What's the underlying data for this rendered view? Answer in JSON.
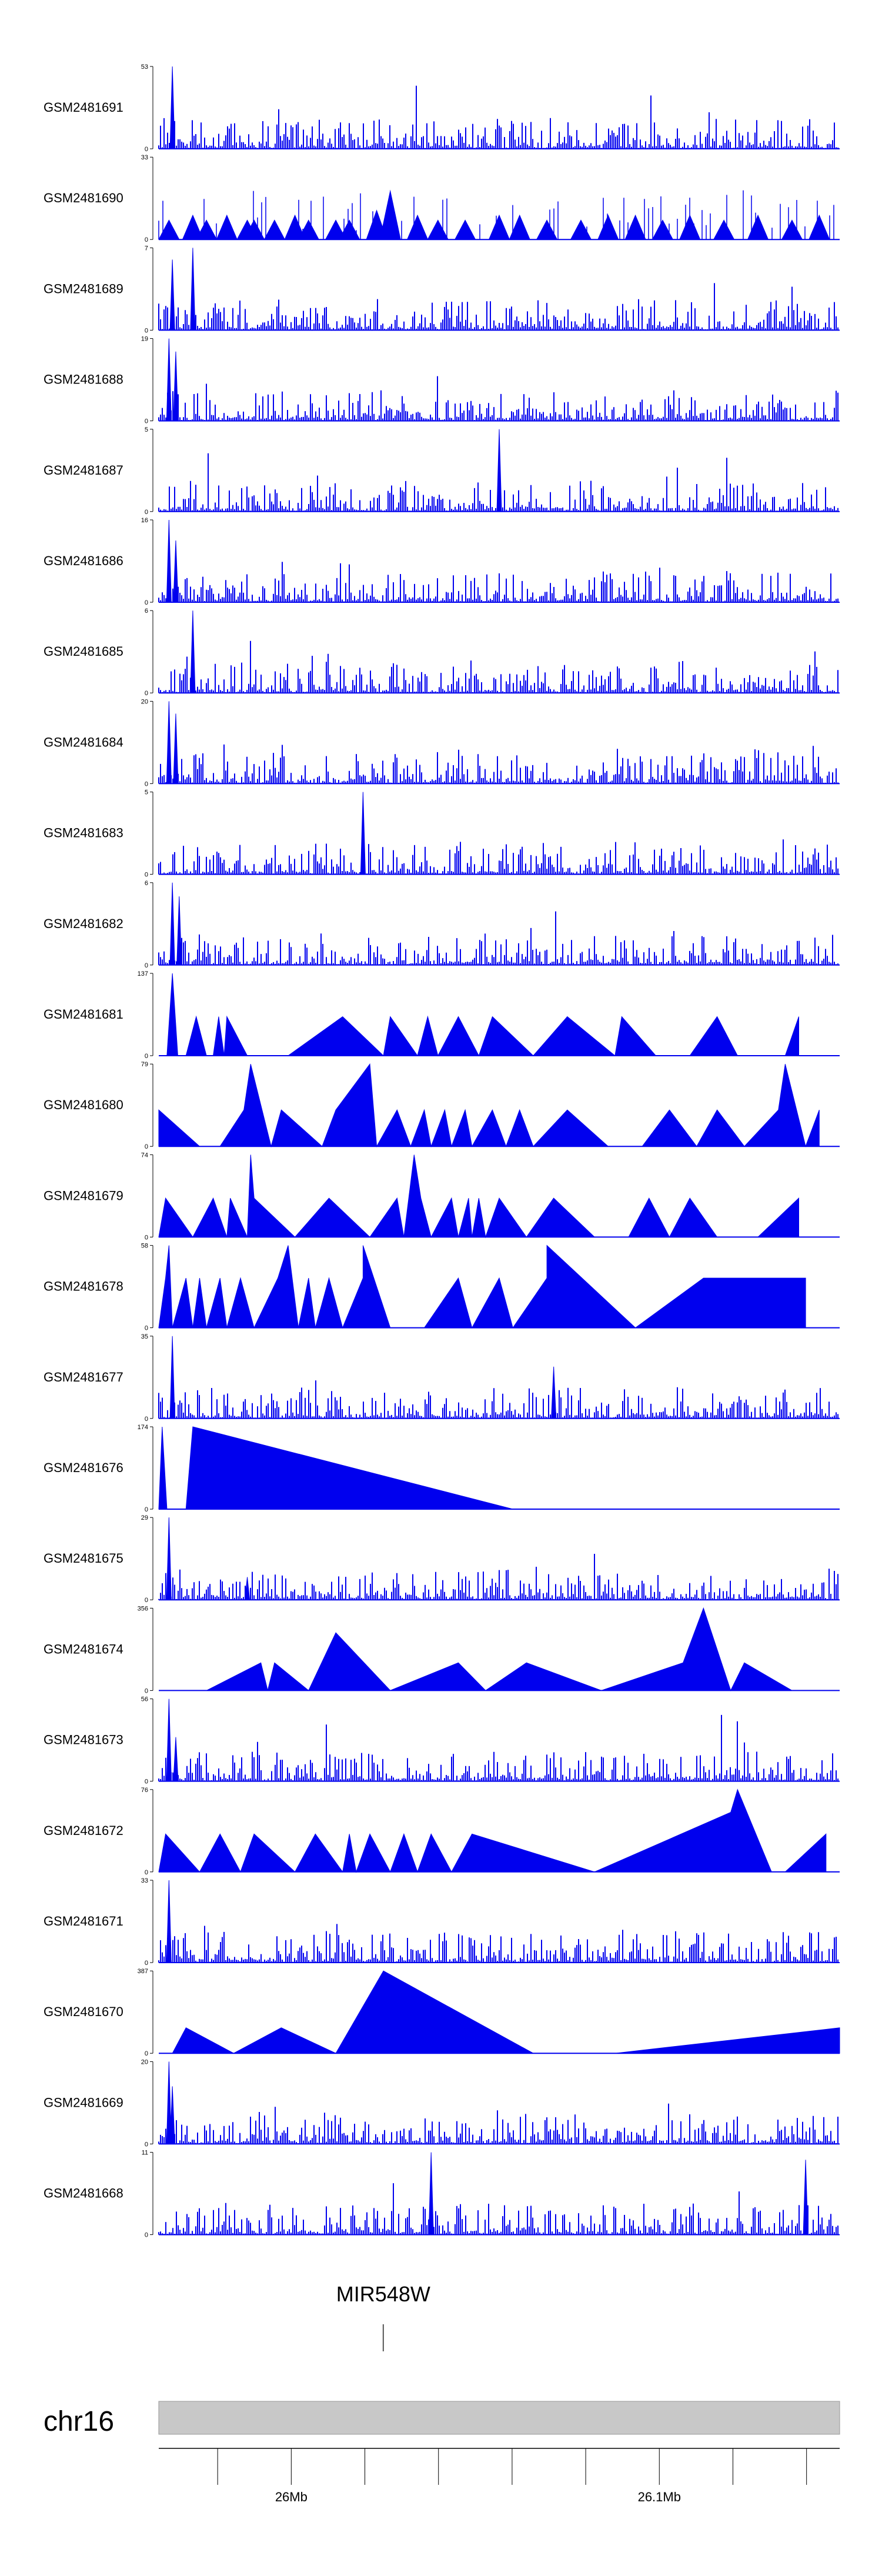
{
  "chart_data": {
    "type": "area",
    "title": "",
    "series_color": "#0000ee",
    "tracks": [
      {
        "name": "GSM2481691",
        "ymax": 53,
        "ymin": 0,
        "style": "dense",
        "spikes": [
          [
            0.02,
            53
          ]
        ]
      },
      {
        "name": "GSM2481690",
        "ymax": 33,
        "ymin": 0,
        "style": "sparse-peaks",
        "peaks": [
          [
            0.015,
            8
          ],
          [
            0.05,
            10
          ],
          [
            0.07,
            8
          ],
          [
            0.1,
            10
          ],
          [
            0.13,
            8
          ],
          [
            0.14,
            8
          ],
          [
            0.17,
            8
          ],
          [
            0.2,
            10
          ],
          [
            0.22,
            8
          ],
          [
            0.26,
            8
          ],
          [
            0.28,
            8
          ],
          [
            0.32,
            12
          ],
          [
            0.34,
            20
          ],
          [
            0.38,
            10
          ],
          [
            0.41,
            8
          ],
          [
            0.45,
            8
          ],
          [
            0.5,
            10
          ],
          [
            0.53,
            10
          ],
          [
            0.57,
            8
          ],
          [
            0.62,
            8
          ],
          [
            0.66,
            10
          ],
          [
            0.7,
            10
          ],
          [
            0.74,
            8
          ],
          [
            0.78,
            10
          ],
          [
            0.83,
            8
          ],
          [
            0.88,
            10
          ],
          [
            0.93,
            8
          ],
          [
            0.97,
            10
          ]
        ]
      },
      {
        "name": "GSM2481689",
        "ymax": 7,
        "ymin": 0,
        "style": "dense",
        "spikes": [
          [
            0.05,
            7
          ],
          [
            0.02,
            6
          ]
        ]
      },
      {
        "name": "GSM2481688",
        "ymax": 19,
        "ymin": 0,
        "style": "dense",
        "spikes": [
          [
            0.015,
            19
          ],
          [
            0.025,
            16
          ]
        ]
      },
      {
        "name": "GSM2481687",
        "ymax": 5,
        "ymin": 0,
        "style": "dense",
        "spikes": [
          [
            0.5,
            5
          ]
        ]
      },
      {
        "name": "GSM2481686",
        "ymax": 16,
        "ymin": 0,
        "style": "dense",
        "spikes": [
          [
            0.015,
            16
          ],
          [
            0.025,
            12
          ]
        ]
      },
      {
        "name": "GSM2481685",
        "ymax": 6,
        "ymin": 0,
        "style": "dense",
        "spikes": [
          [
            0.05,
            6
          ]
        ]
      },
      {
        "name": "GSM2481684",
        "ymax": 20,
        "ymin": 0,
        "style": "dense",
        "spikes": [
          [
            0.015,
            20
          ],
          [
            0.025,
            17
          ]
        ]
      },
      {
        "name": "GSM2481683",
        "ymax": 5,
        "ymin": 0,
        "style": "dense",
        "spikes": [
          [
            0.3,
            5
          ]
        ]
      },
      {
        "name": "GSM2481682",
        "ymax": 6,
        "ymin": 0,
        "style": "dense",
        "spikes": [
          [
            0.02,
            6
          ],
          [
            0.03,
            5
          ]
        ]
      },
      {
        "name": "GSM2481681",
        "ymax": 137,
        "ymin": 0,
        "style": "peaks",
        "peaks": [
          [
            0.0,
            0
          ],
          [
            0.012,
            0
          ],
          [
            0.02,
            137
          ],
          [
            0.028,
            0
          ],
          [
            0.04,
            0
          ],
          [
            0.055,
            65
          ],
          [
            0.07,
            0
          ],
          [
            0.08,
            0
          ],
          [
            0.088,
            65
          ],
          [
            0.096,
            0
          ],
          [
            0.1,
            65
          ],
          [
            0.13,
            0
          ],
          [
            0.19,
            0
          ],
          [
            0.27,
            65
          ],
          [
            0.33,
            0
          ],
          [
            0.34,
            65
          ],
          [
            0.38,
            0
          ],
          [
            0.395,
            65
          ],
          [
            0.41,
            0
          ],
          [
            0.44,
            65
          ],
          [
            0.47,
            0
          ],
          [
            0.49,
            65
          ],
          [
            0.55,
            0
          ],
          [
            0.6,
            65
          ],
          [
            0.67,
            0
          ],
          [
            0.68,
            65
          ],
          [
            0.73,
            0
          ],
          [
            0.78,
            0
          ],
          [
            0.82,
            65
          ],
          [
            0.85,
            0
          ],
          [
            0.92,
            0
          ],
          [
            0.94,
            65
          ]
        ]
      },
      {
        "name": "GSM2481680",
        "ymax": 79,
        "ymin": 0,
        "style": "peaks",
        "peaks": [
          [
            0.0,
            0
          ],
          [
            0.0,
            35
          ],
          [
            0.06,
            0
          ],
          [
            0.09,
            0
          ],
          [
            0.125,
            35
          ],
          [
            0.135,
            79
          ],
          [
            0.165,
            0
          ],
          [
            0.18,
            35
          ],
          [
            0.24,
            0
          ],
          [
            0.26,
            35
          ],
          [
            0.31,
            79
          ],
          [
            0.32,
            0
          ],
          [
            0.35,
            35
          ],
          [
            0.37,
            0
          ],
          [
            0.39,
            35
          ],
          [
            0.4,
            0
          ],
          [
            0.42,
            35
          ],
          [
            0.43,
            0
          ],
          [
            0.45,
            35
          ],
          [
            0.46,
            0
          ],
          [
            0.49,
            35
          ],
          [
            0.51,
            0
          ],
          [
            0.53,
            35
          ],
          [
            0.55,
            0
          ],
          [
            0.6,
            35
          ],
          [
            0.66,
            0
          ],
          [
            0.71,
            0
          ],
          [
            0.75,
            35
          ],
          [
            0.79,
            0
          ],
          [
            0.82,
            35
          ],
          [
            0.86,
            0
          ],
          [
            0.91,
            35
          ],
          [
            0.92,
            79
          ],
          [
            0.95,
            0
          ],
          [
            0.97,
            35
          ]
        ]
      },
      {
        "name": "GSM2481679",
        "ymax": 74,
        "ymin": 0,
        "style": "peaks",
        "peaks": [
          [
            0.0,
            0
          ],
          [
            0.01,
            35
          ],
          [
            0.05,
            0
          ],
          [
            0.08,
            35
          ],
          [
            0.1,
            0
          ],
          [
            0.105,
            35
          ],
          [
            0.13,
            0
          ],
          [
            0.135,
            74
          ],
          [
            0.14,
            35
          ],
          [
            0.2,
            0
          ],
          [
            0.25,
            35
          ],
          [
            0.31,
            0
          ],
          [
            0.35,
            35
          ],
          [
            0.36,
            0
          ],
          [
            0.375,
            74
          ],
          [
            0.385,
            35
          ],
          [
            0.4,
            0
          ],
          [
            0.43,
            35
          ],
          [
            0.44,
            0
          ],
          [
            0.455,
            35
          ],
          [
            0.46,
            0
          ],
          [
            0.47,
            35
          ],
          [
            0.48,
            0
          ],
          [
            0.5,
            35
          ],
          [
            0.54,
            0
          ],
          [
            0.58,
            35
          ],
          [
            0.64,
            0
          ],
          [
            0.69,
            0
          ],
          [
            0.72,
            35
          ],
          [
            0.75,
            0
          ],
          [
            0.78,
            35
          ],
          [
            0.82,
            0
          ],
          [
            0.88,
            0
          ],
          [
            0.94,
            35
          ]
        ]
      },
      {
        "name": "GSM2481678",
        "ymax": 58,
        "ymin": 0,
        "style": "peaks",
        "peaks": [
          [
            0.0,
            0
          ],
          [
            0.01,
            35
          ],
          [
            0.015,
            58
          ],
          [
            0.02,
            0
          ],
          [
            0.04,
            35
          ],
          [
            0.05,
            0
          ],
          [
            0.06,
            35
          ],
          [
            0.07,
            0
          ],
          [
            0.09,
            35
          ],
          [
            0.1,
            0
          ],
          [
            0.12,
            35
          ],
          [
            0.14,
            0
          ],
          [
            0.175,
            35
          ],
          [
            0.19,
            58
          ],
          [
            0.205,
            0
          ],
          [
            0.22,
            35
          ],
          [
            0.23,
            0
          ],
          [
            0.25,
            35
          ],
          [
            0.27,
            0
          ],
          [
            0.3,
            35
          ],
          [
            0.3,
            58
          ],
          [
            0.34,
            0
          ],
          [
            0.39,
            0
          ],
          [
            0.44,
            35
          ],
          [
            0.46,
            0
          ],
          [
            0.5,
            35
          ],
          [
            0.52,
            0
          ],
          [
            0.57,
            35
          ],
          [
            0.57,
            58
          ],
          [
            0.7,
            0
          ],
          [
            0.8,
            35
          ],
          [
            0.95,
            35
          ]
        ]
      },
      {
        "name": "GSM2481677",
        "ymax": 35,
        "ymin": 0,
        "style": "dense",
        "spikes": [
          [
            0.02,
            35
          ],
          [
            0.58,
            22
          ]
        ]
      },
      {
        "name": "GSM2481676",
        "ymax": 174,
        "ymin": 0,
        "style": "peaks",
        "peaks": [
          [
            0.0,
            0
          ],
          [
            0.005,
            174
          ],
          [
            0.012,
            0
          ],
          [
            0.04,
            0
          ],
          [
            0.05,
            174
          ],
          [
            0.52,
            0
          ]
        ]
      },
      {
        "name": "GSM2481675",
        "ymax": 29,
        "ymin": 0,
        "style": "dense",
        "spikes": [
          [
            0.015,
            29
          ],
          [
            0.13,
            8
          ]
        ]
      },
      {
        "name": "GSM2481674",
        "ymax": 356,
        "ymin": 0,
        "style": "peaks",
        "peaks": [
          [
            0.07,
            0
          ],
          [
            0.15,
            120
          ],
          [
            0.16,
            0
          ],
          [
            0.17,
            120
          ],
          [
            0.22,
            0
          ],
          [
            0.26,
            250
          ],
          [
            0.34,
            0
          ],
          [
            0.44,
            120
          ],
          [
            0.48,
            0
          ],
          [
            0.54,
            120
          ],
          [
            0.65,
            0
          ],
          [
            0.77,
            120
          ],
          [
            0.8,
            356
          ],
          [
            0.84,
            0
          ],
          [
            0.86,
            120
          ],
          [
            0.93,
            0
          ]
        ]
      },
      {
        "name": "GSM2481673",
        "ymax": 56,
        "ymin": 0,
        "style": "dense",
        "spikes": [
          [
            0.015,
            56
          ],
          [
            0.025,
            30
          ]
        ]
      },
      {
        "name": "GSM2481672",
        "ymax": 76,
        "ymin": 0,
        "style": "peaks",
        "peaks": [
          [
            0.0,
            0
          ],
          [
            0.01,
            35
          ],
          [
            0.06,
            0
          ],
          [
            0.09,
            35
          ],
          [
            0.12,
            0
          ],
          [
            0.14,
            35
          ],
          [
            0.2,
            0
          ],
          [
            0.23,
            35
          ],
          [
            0.27,
            0
          ],
          [
            0.28,
            35
          ],
          [
            0.29,
            0
          ],
          [
            0.31,
            35
          ],
          [
            0.34,
            0
          ],
          [
            0.36,
            35
          ],
          [
            0.38,
            0
          ],
          [
            0.4,
            35
          ],
          [
            0.43,
            0
          ],
          [
            0.46,
            35
          ],
          [
            0.64,
            0
          ],
          [
            0.84,
            55
          ],
          [
            0.85,
            76
          ],
          [
            0.9,
            0
          ],
          [
            0.92,
            0
          ],
          [
            0.98,
            35
          ]
        ]
      },
      {
        "name": "GSM2481671",
        "ymax": 33,
        "ymin": 0,
        "style": "dense",
        "spikes": [
          [
            0.015,
            33
          ]
        ]
      },
      {
        "name": "GSM2481670",
        "ymax": 387,
        "ymin": 0,
        "style": "peaks",
        "peaks": [
          [
            0.02,
            0
          ],
          [
            0.04,
            120
          ],
          [
            0.11,
            0
          ],
          [
            0.18,
            120
          ],
          [
            0.26,
            0
          ],
          [
            0.33,
            387
          ],
          [
            0.55,
            0
          ],
          [
            0.67,
            0
          ],
          [
            1.0,
            120
          ]
        ]
      },
      {
        "name": "GSM2481669",
        "ymax": 20,
        "ymin": 0,
        "style": "dense",
        "spikes": [
          [
            0.015,
            20
          ],
          [
            0.02,
            14
          ]
        ]
      },
      {
        "name": "GSM2481668",
        "ymax": 11,
        "ymin": 0,
        "style": "dense",
        "spikes": [
          [
            0.4,
            11
          ],
          [
            0.95,
            10
          ]
        ]
      }
    ],
    "gene": {
      "label": "MIR548W",
      "position_mb": 26.025
    },
    "chromosome": "chr16",
    "x_range_mb": [
      25.964,
      26.149
    ],
    "x_ticks_mb": [
      25.98,
      26.0,
      26.02,
      26.04,
      26.06,
      26.08,
      26.1,
      26.12,
      26.14
    ],
    "x_tick_labels": [
      {
        "mb": 26.0,
        "label": "26Mb"
      },
      {
        "mb": 26.1,
        "label": "26.1Mb"
      }
    ]
  }
}
